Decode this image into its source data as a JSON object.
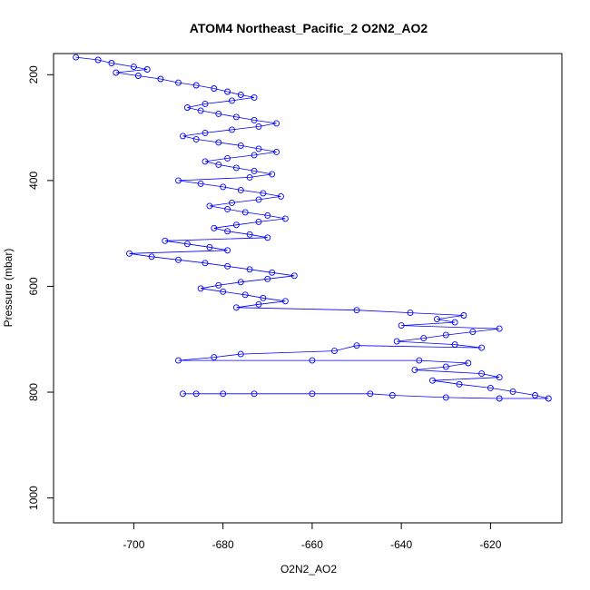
{
  "chart_data": {
    "type": "scatter",
    "title": "ATOM4 Northeast_Pacific_2 O2N2_AO2",
    "xlabel": "O2N2_AO2",
    "ylabel": "Pressure (mbar)",
    "xlim": [
      -718,
      -604
    ],
    "ylim": [
      1047,
      160
    ],
    "y_reversed": true,
    "x_ticks": [
      -700,
      -680,
      -660,
      -640,
      -620
    ],
    "y_ticks": [
      200,
      400,
      600,
      800,
      1000
    ],
    "grid": false,
    "legend": "none",
    "marker": "open-circle",
    "connected_by_lines": true,
    "series_color": "#0000ff",
    "series": [
      {
        "points": [
          [
            -713,
            167
          ],
          [
            -708,
            172
          ],
          [
            -705,
            178
          ],
          [
            -700,
            185
          ],
          [
            -697,
            190
          ],
          [
            -704,
            196
          ],
          [
            -699,
            202
          ],
          [
            -694,
            208
          ],
          [
            -690,
            215
          ],
          [
            -686,
            220
          ],
          [
            -682,
            226
          ],
          [
            -679,
            232
          ],
          [
            -676,
            238
          ],
          [
            -673,
            243
          ],
          [
            -678,
            249
          ],
          [
            -684,
            255
          ],
          [
            -688,
            262
          ],
          [
            -685,
            268
          ],
          [
            -681,
            274
          ],
          [
            -677,
            280
          ],
          [
            -673,
            286
          ],
          [
            -668,
            292
          ],
          [
            -672,
            298
          ],
          [
            -678,
            304
          ],
          [
            -684,
            310
          ],
          [
            -689,
            316
          ],
          [
            -686,
            322
          ],
          [
            -681,
            328
          ],
          [
            -676,
            334
          ],
          [
            -672,
            340
          ],
          [
            -668,
            346
          ],
          [
            -673,
            352
          ],
          [
            -679,
            358
          ],
          [
            -684,
            364
          ],
          [
            -681,
            370
          ],
          [
            -677,
            376
          ],
          [
            -673,
            382
          ],
          [
            -669,
            388
          ],
          [
            -674,
            394
          ],
          [
            -690,
            400
          ],
          [
            -685,
            406
          ],
          [
            -680,
            412
          ],
          [
            -676,
            418
          ],
          [
            -671,
            424
          ],
          [
            -667,
            430
          ],
          [
            -672,
            436
          ],
          [
            -678,
            442
          ],
          [
            -683,
            448
          ],
          [
            -679,
            454
          ],
          [
            -675,
            460
          ],
          [
            -670,
            466
          ],
          [
            -666,
            472
          ],
          [
            -672,
            478
          ],
          [
            -677,
            484
          ],
          [
            -682,
            490
          ],
          [
            -679,
            496
          ],
          [
            -674,
            502
          ],
          [
            -670,
            508
          ],
          [
            -693,
            514
          ],
          [
            -688,
            520
          ],
          [
            -683,
            526
          ],
          [
            -679,
            532
          ],
          [
            -701,
            538
          ],
          [
            -696,
            544
          ],
          [
            -690,
            550
          ],
          [
            -684,
            556
          ],
          [
            -679,
            562
          ],
          [
            -674,
            568
          ],
          [
            -669,
            574
          ],
          [
            -664,
            580
          ],
          [
            -670,
            586
          ],
          [
            -676,
            592
          ],
          [
            -681,
            598
          ],
          [
            -685,
            604
          ],
          [
            -680,
            610
          ],
          [
            -675,
            616
          ],
          [
            -671,
            622
          ],
          [
            -666,
            628
          ],
          [
            -672,
            634
          ],
          [
            -677,
            640
          ],
          [
            -650,
            645
          ],
          [
            -638,
            650
          ],
          [
            -626,
            655
          ],
          [
            -632,
            662
          ],
          [
            -628,
            668
          ],
          [
            -640,
            674
          ],
          [
            -618,
            680
          ],
          [
            -624,
            686
          ],
          [
            -630,
            692
          ],
          [
            -635,
            698
          ],
          [
            -641,
            704
          ],
          [
            -628,
            710
          ],
          [
            -622,
            716
          ],
          [
            -650,
            712
          ],
          [
            -655,
            722
          ],
          [
            -676,
            728
          ],
          [
            -682,
            734
          ],
          [
            -690,
            740
          ],
          [
            -660,
            740
          ],
          [
            -636,
            740
          ],
          [
            -625,
            745
          ],
          [
            -630,
            752
          ],
          [
            -637,
            758
          ],
          [
            -622,
            765
          ],
          [
            -618,
            772
          ],
          [
            -633,
            778
          ],
          [
            -627,
            785
          ],
          [
            -620,
            792
          ],
          [
            -615,
            799
          ],
          [
            -610,
            806
          ],
          [
            -607,
            812
          ],
          [
            -618,
            812
          ],
          [
            -630,
            810
          ],
          [
            -642,
            806
          ],
          [
            -647,
            803
          ],
          [
            -660,
            803
          ],
          [
            -673,
            803
          ],
          [
            -680,
            803
          ],
          [
            -686,
            803
          ],
          [
            -689,
            803
          ]
        ]
      }
    ]
  }
}
